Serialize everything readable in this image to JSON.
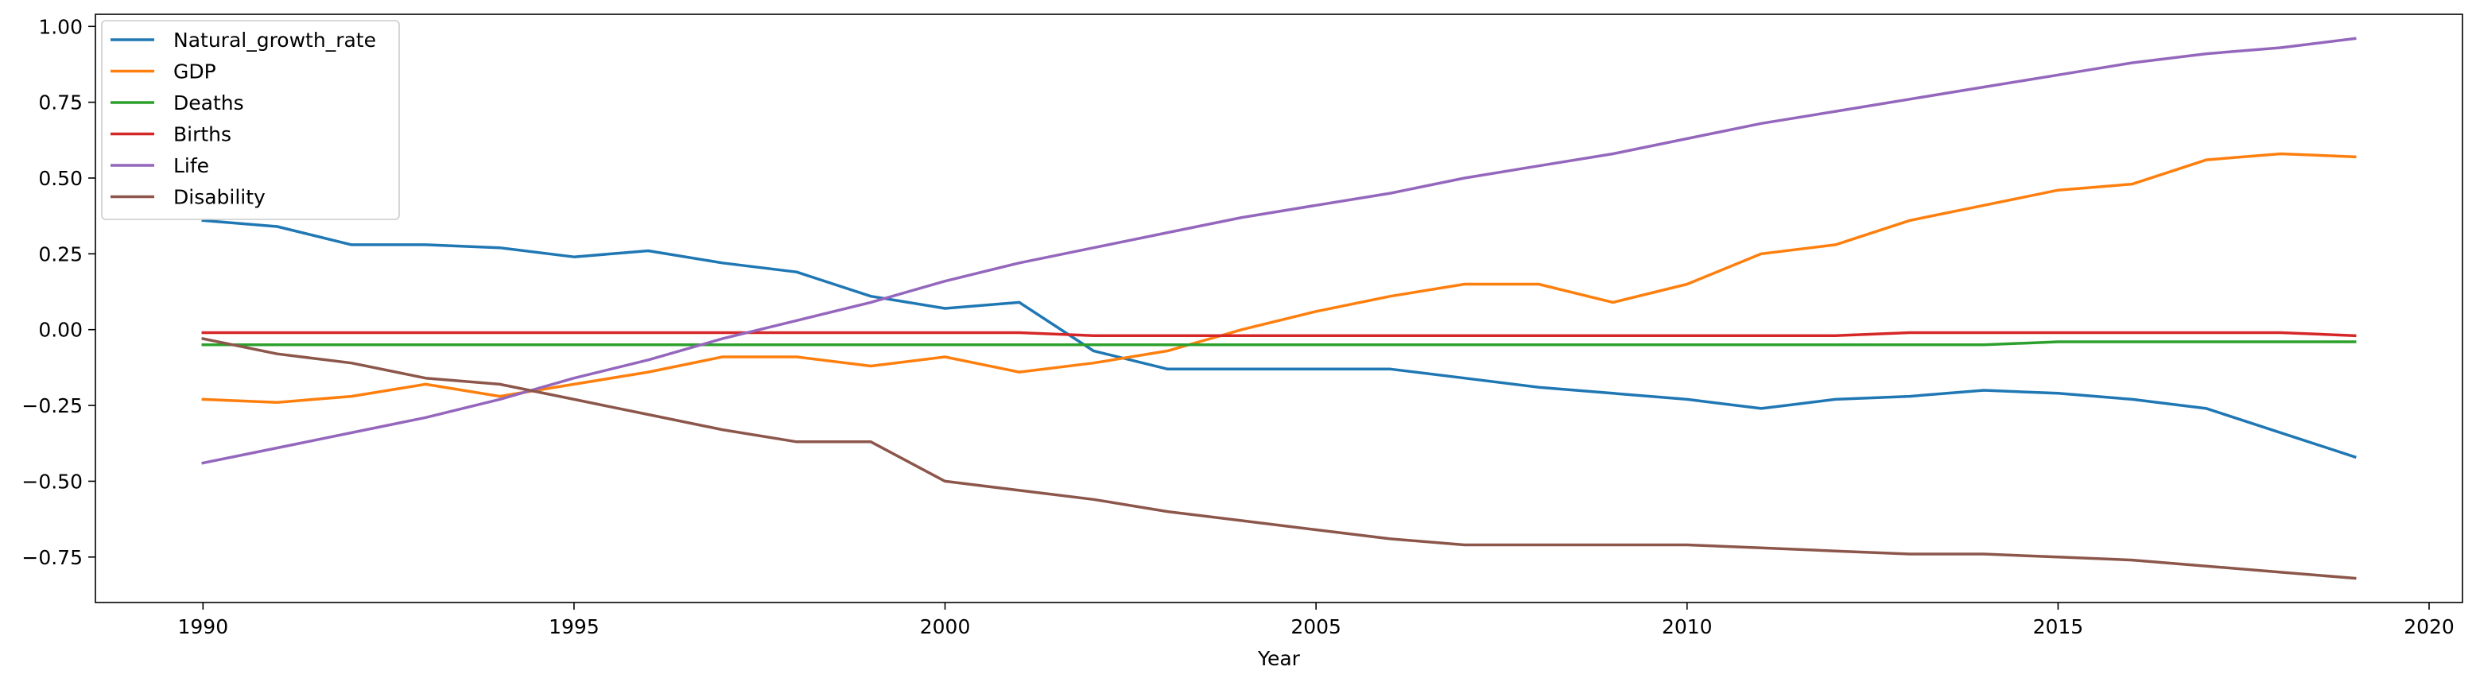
{
  "chart_data": {
    "type": "line",
    "xlabel": "Year",
    "ylabel": "",
    "xlim": [
      1988.55,
      2020.45
    ],
    "ylim": [
      -0.9,
      1.04
    ],
    "x_ticks": [
      1990,
      1995,
      2000,
      2005,
      2010,
      2015,
      2020
    ],
    "y_ticks": [
      -0.75,
      -0.5,
      -0.25,
      0.0,
      0.25,
      0.5,
      0.75,
      1.0
    ],
    "y_tick_labels": [
      "−0.75",
      "−0.50",
      "−0.25",
      "0.00",
      "0.25",
      "0.50",
      "0.75",
      "1.00"
    ],
    "grid": false,
    "legend_position": "upper-left",
    "x": [
      1990,
      1991,
      1992,
      1993,
      1994,
      1995,
      1996,
      1997,
      1998,
      1999,
      2000,
      2001,
      2002,
      2003,
      2004,
      2005,
      2006,
      2007,
      2008,
      2009,
      2010,
      2011,
      2012,
      2013,
      2014,
      2015,
      2016,
      2017,
      2018,
      2019
    ],
    "series": [
      {
        "name": "Natural_growth_rate",
        "color": "#1f77b4",
        "values": [
          0.36,
          0.34,
          0.28,
          0.28,
          0.27,
          0.24,
          0.26,
          0.22,
          0.19,
          0.11,
          0.07,
          0.09,
          -0.07,
          -0.13,
          -0.13,
          -0.13,
          -0.13,
          -0.16,
          -0.19,
          -0.21,
          -0.23,
          -0.26,
          -0.23,
          -0.22,
          -0.2,
          -0.21,
          -0.23,
          -0.26,
          -0.34,
          -0.42
        ]
      },
      {
        "name": "GDP",
        "color": "#ff7f0e",
        "values": [
          -0.23,
          -0.24,
          -0.22,
          -0.18,
          -0.22,
          -0.18,
          -0.14,
          -0.09,
          -0.09,
          -0.12,
          -0.09,
          -0.14,
          -0.11,
          -0.07,
          0.0,
          0.06,
          0.11,
          0.15,
          0.15,
          0.09,
          0.15,
          0.25,
          0.28,
          0.36,
          0.41,
          0.46,
          0.48,
          0.56,
          0.58,
          0.57
        ]
      },
      {
        "name": "Deaths",
        "color": "#2ca02c",
        "values": [
          -0.05,
          -0.05,
          -0.05,
          -0.05,
          -0.05,
          -0.05,
          -0.05,
          -0.05,
          -0.05,
          -0.05,
          -0.05,
          -0.05,
          -0.05,
          -0.05,
          -0.05,
          -0.05,
          -0.05,
          -0.05,
          -0.05,
          -0.05,
          -0.05,
          -0.05,
          -0.05,
          -0.05,
          -0.05,
          -0.04,
          -0.04,
          -0.04,
          -0.04,
          -0.04
        ]
      },
      {
        "name": "Births",
        "color": "#d62728",
        "values": [
          -0.01,
          -0.01,
          -0.01,
          -0.01,
          -0.01,
          -0.01,
          -0.01,
          -0.01,
          -0.01,
          -0.01,
          -0.01,
          -0.01,
          -0.02,
          -0.02,
          -0.02,
          -0.02,
          -0.02,
          -0.02,
          -0.02,
          -0.02,
          -0.02,
          -0.02,
          -0.02,
          -0.01,
          -0.01,
          -0.01,
          -0.01,
          -0.01,
          -0.01,
          -0.02
        ]
      },
      {
        "name": "Life",
        "color": "#9467bd",
        "values": [
          -0.44,
          -0.39,
          -0.34,
          -0.29,
          -0.23,
          -0.16,
          -0.1,
          -0.03,
          0.03,
          0.09,
          0.16,
          0.22,
          0.27,
          0.32,
          0.37,
          0.41,
          0.45,
          0.5,
          0.54,
          0.58,
          0.63,
          0.68,
          0.72,
          0.76,
          0.8,
          0.84,
          0.88,
          0.91,
          0.93,
          0.96
        ]
      },
      {
        "name": "Disability",
        "color": "#8c564b",
        "values": [
          -0.03,
          -0.08,
          -0.11,
          -0.16,
          -0.18,
          -0.23,
          -0.28,
          -0.33,
          -0.37,
          -0.37,
          -0.5,
          -0.53,
          -0.56,
          -0.6,
          -0.63,
          -0.66,
          -0.69,
          -0.71,
          -0.71,
          -0.71,
          -0.71,
          -0.72,
          -0.73,
          -0.74,
          -0.74,
          -0.75,
          -0.76,
          -0.78,
          -0.8,
          -0.82
        ]
      }
    ]
  }
}
